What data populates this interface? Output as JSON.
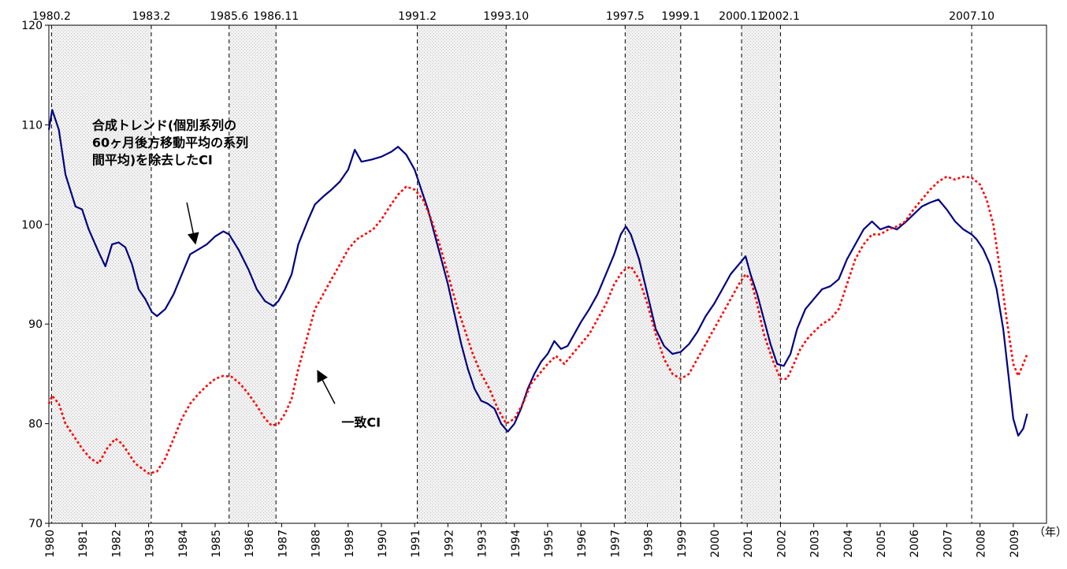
{
  "chart_data": {
    "type": "line",
    "xlabel": "",
    "x_unit_label": "（年）",
    "ylabel": "",
    "xlim": [
      1980.0,
      2010.0
    ],
    "ylim": [
      70,
      120
    ],
    "y_ticks": [
      70,
      80,
      90,
      100,
      110,
      120
    ],
    "x_ticks": [
      "1980",
      "1981",
      "1982",
      "1983",
      "1984",
      "1985",
      "1986",
      "1987",
      "1988",
      "1989",
      "1990",
      "1991",
      "1992",
      "1993",
      "1994",
      "1995",
      "1996",
      "1997",
      "1998",
      "1999",
      "2000",
      "2001",
      "2002",
      "2003",
      "2004",
      "2005",
      "2006",
      "2007",
      "2008",
      "2009"
    ],
    "grid": false,
    "event_lines": [
      {
        "label": "1980.2",
        "x": 1980.08
      },
      {
        "label": "1983.2",
        "x": 1983.08
      },
      {
        "label": "1985.6",
        "x": 1985.42
      },
      {
        "label": "1986.11",
        "x": 1986.83
      },
      {
        "label": "1991.2",
        "x": 1991.08
      },
      {
        "label": "1993.10",
        "x": 1993.75
      },
      {
        "label": "1997.5",
        "x": 1997.33
      },
      {
        "label": "1999.1",
        "x": 1999.0
      },
      {
        "label": "2000.11",
        "x": 2000.83
      },
      {
        "label": "2002.1",
        "x": 2002.0
      },
      {
        "label": "2007.10",
        "x": 2007.75
      }
    ],
    "shaded_periods": [
      [
        "1980.2",
        "1983.2"
      ],
      [
        "1985.6",
        "1986.11"
      ],
      [
        "1991.2",
        "1993.10"
      ],
      [
        "1997.5",
        "1999.1"
      ],
      [
        "2000.11",
        "2002.1"
      ]
    ],
    "annotations": [
      {
        "lines": [
          "合成トレンド(個別系列の",
          "60ヶ月後方移動平均の系列",
          "間平均)を除去したCI"
        ],
        "x": 1981.3,
        "y": 109.5,
        "arrow_to": [
          1984.4,
          98.2
        ],
        "arrow_from": [
          1984.15,
          102.2
        ]
      },
      {
        "lines": [
          "一致CI"
        ],
        "x": 1988.8,
        "y": 79.7,
        "arrow_to": [
          1988.1,
          85.2
        ],
        "arrow_from": [
          1988.6,
          82.0
        ]
      }
    ],
    "series": [
      {
        "name": "",
        "color": "#000080",
        "style": "solid",
        "points": [
          [
            1980.0,
            109.5
          ],
          [
            1980.1,
            111.5
          ],
          [
            1980.3,
            109.5
          ],
          [
            1980.5,
            105.0
          ],
          [
            1980.8,
            101.8
          ],
          [
            1981.0,
            101.5
          ],
          [
            1981.2,
            99.5
          ],
          [
            1981.5,
            97.2
          ],
          [
            1981.7,
            95.8
          ],
          [
            1981.9,
            98.0
          ],
          [
            1982.1,
            98.2
          ],
          [
            1982.3,
            97.7
          ],
          [
            1982.5,
            96.0
          ],
          [
            1982.7,
            93.5
          ],
          [
            1982.9,
            92.5
          ],
          [
            1983.1,
            91.2
          ],
          [
            1983.25,
            90.8
          ],
          [
            1983.5,
            91.5
          ],
          [
            1983.75,
            93.0
          ],
          [
            1984.0,
            95.0
          ],
          [
            1984.25,
            97.0
          ],
          [
            1984.5,
            97.5
          ],
          [
            1984.75,
            98.0
          ],
          [
            1985.0,
            98.8
          ],
          [
            1985.25,
            99.3
          ],
          [
            1985.42,
            99.0
          ],
          [
            1985.7,
            97.5
          ],
          [
            1986.0,
            95.5
          ],
          [
            1986.25,
            93.5
          ],
          [
            1986.5,
            92.3
          ],
          [
            1986.75,
            91.8
          ],
          [
            1986.9,
            92.3
          ],
          [
            1987.1,
            93.5
          ],
          [
            1987.3,
            95.0
          ],
          [
            1987.5,
            98.0
          ],
          [
            1987.8,
            100.5
          ],
          [
            1988.0,
            102.0
          ],
          [
            1988.25,
            102.8
          ],
          [
            1988.5,
            103.5
          ],
          [
            1988.75,
            104.3
          ],
          [
            1989.0,
            105.5
          ],
          [
            1989.2,
            107.5
          ],
          [
            1989.4,
            106.3
          ],
          [
            1989.7,
            106.5
          ],
          [
            1990.0,
            106.8
          ],
          [
            1990.3,
            107.3
          ],
          [
            1990.5,
            107.8
          ],
          [
            1990.75,
            107.0
          ],
          [
            1991.0,
            105.5
          ],
          [
            1991.2,
            103.5
          ],
          [
            1991.4,
            101.5
          ],
          [
            1991.6,
            99.0
          ],
          [
            1991.8,
            96.5
          ],
          [
            1992.0,
            94.0
          ],
          [
            1992.2,
            91.0
          ],
          [
            1992.4,
            88.0
          ],
          [
            1992.6,
            85.5
          ],
          [
            1992.8,
            83.5
          ],
          [
            1993.0,
            82.3
          ],
          [
            1993.2,
            82.0
          ],
          [
            1993.4,
            81.5
          ],
          [
            1993.6,
            80.0
          ],
          [
            1993.8,
            79.2
          ],
          [
            1994.0,
            80.0
          ],
          [
            1994.2,
            81.5
          ],
          [
            1994.4,
            83.5
          ],
          [
            1994.6,
            85.0
          ],
          [
            1994.8,
            86.2
          ],
          [
            1995.0,
            87.0
          ],
          [
            1995.2,
            88.3
          ],
          [
            1995.4,
            87.5
          ],
          [
            1995.6,
            87.8
          ],
          [
            1995.8,
            89.0
          ],
          [
            1996.0,
            90.2
          ],
          [
            1996.25,
            91.5
          ],
          [
            1996.5,
            93.0
          ],
          [
            1996.75,
            95.0
          ],
          [
            1997.0,
            97.0
          ],
          [
            1997.2,
            99.0
          ],
          [
            1997.35,
            99.8
          ],
          [
            1997.5,
            99.0
          ],
          [
            1997.75,
            96.5
          ],
          [
            1998.0,
            93.0
          ],
          [
            1998.25,
            89.5
          ],
          [
            1998.5,
            87.8
          ],
          [
            1998.75,
            87.0
          ],
          [
            1999.0,
            87.2
          ],
          [
            1999.25,
            88.0
          ],
          [
            1999.5,
            89.2
          ],
          [
            1999.75,
            90.8
          ],
          [
            2000.0,
            92.0
          ],
          [
            2000.25,
            93.5
          ],
          [
            2000.5,
            95.0
          ],
          [
            2000.75,
            96.0
          ],
          [
            2000.95,
            96.8
          ],
          [
            2001.1,
            95.0
          ],
          [
            2001.3,
            93.0
          ],
          [
            2001.5,
            90.5
          ],
          [
            2001.7,
            88.0
          ],
          [
            2001.9,
            86.0
          ],
          [
            2002.1,
            85.8
          ],
          [
            2002.3,
            87.0
          ],
          [
            2002.5,
            89.5
          ],
          [
            2002.75,
            91.5
          ],
          [
            2003.0,
            92.5
          ],
          [
            2003.25,
            93.5
          ],
          [
            2003.5,
            93.8
          ],
          [
            2003.75,
            94.5
          ],
          [
            2004.0,
            96.5
          ],
          [
            2004.25,
            98.0
          ],
          [
            2004.5,
            99.5
          ],
          [
            2004.75,
            100.3
          ],
          [
            2005.0,
            99.5
          ],
          [
            2005.25,
            99.8
          ],
          [
            2005.5,
            99.5
          ],
          [
            2005.75,
            100.2
          ],
          [
            2006.0,
            101.0
          ],
          [
            2006.25,
            101.8
          ],
          [
            2006.5,
            102.2
          ],
          [
            2006.75,
            102.5
          ],
          [
            2007.0,
            101.5
          ],
          [
            2007.25,
            100.3
          ],
          [
            2007.5,
            99.5
          ],
          [
            2007.75,
            99.0
          ],
          [
            2007.9,
            98.5
          ],
          [
            2008.1,
            97.5
          ],
          [
            2008.3,
            96.0
          ],
          [
            2008.5,
            93.5
          ],
          [
            2008.7,
            89.5
          ],
          [
            2008.85,
            85.0
          ],
          [
            2009.0,
            80.5
          ],
          [
            2009.15,
            78.8
          ],
          [
            2009.3,
            79.5
          ],
          [
            2009.42,
            81.0
          ]
        ]
      },
      {
        "name": "",
        "color": "#ff0000",
        "style": "dotted",
        "points": [
          [
            1980.0,
            82.0
          ],
          [
            1980.1,
            82.8
          ],
          [
            1980.3,
            82.0
          ],
          [
            1980.5,
            80.0
          ],
          [
            1980.8,
            78.5
          ],
          [
            1981.0,
            77.5
          ],
          [
            1981.25,
            76.5
          ],
          [
            1981.5,
            76.0
          ],
          [
            1981.75,
            77.5
          ],
          [
            1982.0,
            78.5
          ],
          [
            1982.2,
            78.0
          ],
          [
            1982.4,
            77.0
          ],
          [
            1982.6,
            76.0
          ],
          [
            1982.8,
            75.5
          ],
          [
            1983.0,
            75.0
          ],
          [
            1983.25,
            75.2
          ],
          [
            1983.5,
            76.5
          ],
          [
            1983.75,
            78.5
          ],
          [
            1984.0,
            80.5
          ],
          [
            1984.25,
            82.0
          ],
          [
            1984.5,
            83.0
          ],
          [
            1984.75,
            83.8
          ],
          [
            1985.0,
            84.5
          ],
          [
            1985.25,
            84.8
          ],
          [
            1985.5,
            84.7
          ],
          [
            1985.75,
            84.0
          ],
          [
            1986.0,
            83.0
          ],
          [
            1986.25,
            81.8
          ],
          [
            1986.5,
            80.5
          ],
          [
            1986.7,
            79.8
          ],
          [
            1986.9,
            80.0
          ],
          [
            1987.1,
            81.0
          ],
          [
            1987.3,
            82.5
          ],
          [
            1987.5,
            85.5
          ],
          [
            1987.75,
            88.5
          ],
          [
            1988.0,
            91.5
          ],
          [
            1988.25,
            93.0
          ],
          [
            1988.5,
            94.5
          ],
          [
            1988.75,
            96.0
          ],
          [
            1989.0,
            97.5
          ],
          [
            1989.25,
            98.5
          ],
          [
            1989.5,
            99.0
          ],
          [
            1989.75,
            99.5
          ],
          [
            1990.0,
            100.5
          ],
          [
            1990.25,
            101.8
          ],
          [
            1990.5,
            103.0
          ],
          [
            1990.75,
            103.8
          ],
          [
            1991.0,
            103.5
          ],
          [
            1991.25,
            102.5
          ],
          [
            1991.5,
            100.5
          ],
          [
            1991.75,
            98.0
          ],
          [
            1992.0,
            95.0
          ],
          [
            1992.25,
            92.0
          ],
          [
            1992.5,
            89.5
          ],
          [
            1992.75,
            87.0
          ],
          [
            1993.0,
            85.0
          ],
          [
            1993.25,
            83.5
          ],
          [
            1993.5,
            81.5
          ],
          [
            1993.75,
            80.0
          ],
          [
            1994.0,
            80.5
          ],
          [
            1994.25,
            82.0
          ],
          [
            1994.5,
            84.0
          ],
          [
            1994.75,
            85.0
          ],
          [
            1995.0,
            86.0
          ],
          [
            1995.25,
            86.8
          ],
          [
            1995.5,
            86.0
          ],
          [
            1995.75,
            87.0
          ],
          [
            1996.0,
            88.0
          ],
          [
            1996.25,
            89.0
          ],
          [
            1996.5,
            90.5
          ],
          [
            1996.75,
            92.0
          ],
          [
            1997.0,
            94.0
          ],
          [
            1997.25,
            95.3
          ],
          [
            1997.5,
            95.8
          ],
          [
            1997.75,
            94.5
          ],
          [
            1998.0,
            92.0
          ],
          [
            1998.25,
            89.0
          ],
          [
            1998.5,
            86.5
          ],
          [
            1998.75,
            85.0
          ],
          [
            1999.0,
            84.5
          ],
          [
            1999.25,
            85.0
          ],
          [
            1999.5,
            86.5
          ],
          [
            1999.75,
            88.0
          ],
          [
            2000.0,
            89.5
          ],
          [
            2000.25,
            91.0
          ],
          [
            2000.5,
            92.5
          ],
          [
            2000.75,
            94.0
          ],
          [
            2000.95,
            95.0
          ],
          [
            2001.1,
            94.5
          ],
          [
            2001.3,
            92.0
          ],
          [
            2001.5,
            89.0
          ],
          [
            2001.75,
            86.5
          ],
          [
            2002.0,
            84.5
          ],
          [
            2002.2,
            84.5
          ],
          [
            2002.4,
            86.0
          ],
          [
            2002.6,
            87.5
          ],
          [
            2002.8,
            88.5
          ],
          [
            2003.0,
            89.2
          ],
          [
            2003.25,
            90.0
          ],
          [
            2003.5,
            90.5
          ],
          [
            2003.75,
            91.5
          ],
          [
            2004.0,
            94.0
          ],
          [
            2004.25,
            96.5
          ],
          [
            2004.5,
            98.0
          ],
          [
            2004.75,
            99.0
          ],
          [
            2005.0,
            99.0
          ],
          [
            2005.25,
            99.5
          ],
          [
            2005.5,
            99.8
          ],
          [
            2005.75,
            100.3
          ],
          [
            2006.0,
            101.5
          ],
          [
            2006.25,
            102.5
          ],
          [
            2006.5,
            103.5
          ],
          [
            2006.75,
            104.3
          ],
          [
            2007.0,
            104.8
          ],
          [
            2007.25,
            104.5
          ],
          [
            2007.5,
            104.8
          ],
          [
            2007.75,
            104.7
          ],
          [
            2008.0,
            104.0
          ],
          [
            2008.2,
            102.5
          ],
          [
            2008.4,
            100.0
          ],
          [
            2008.6,
            95.5
          ],
          [
            2008.8,
            90.5
          ],
          [
            2009.0,
            86.0
          ],
          [
            2009.15,
            84.8
          ],
          [
            2009.3,
            86.0
          ],
          [
            2009.42,
            87.0
          ]
        ]
      }
    ]
  }
}
